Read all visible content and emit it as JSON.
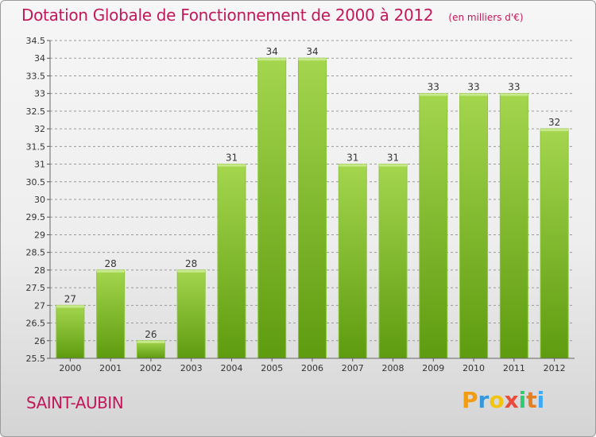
{
  "header": {
    "title": "Dotation Globale de Fonctionnement de 2000 à 2012",
    "unit": "(en milliers d'€)"
  },
  "footer": {
    "commune": "SAINT-AUBIN",
    "logo_letters": [
      "P",
      "r",
      "o",
      "x",
      "i",
      "t",
      "i"
    ]
  },
  "colors": {
    "title": "#c2185b",
    "bar_light": "#9fd24c",
    "bar_dark": "#5f9a10",
    "grid": "#9a9a9a"
  },
  "chart_data": {
    "type": "bar",
    "title": "Dotation Globale de Fonctionnement de 2000 à 2012",
    "ylabel": "(en milliers d'€)",
    "xlabel": "",
    "categories": [
      "2000",
      "2001",
      "2002",
      "2003",
      "2004",
      "2005",
      "2006",
      "2007",
      "2008",
      "2009",
      "2010",
      "2011",
      "2012"
    ],
    "values": [
      27,
      28,
      26,
      28,
      31,
      34,
      34,
      31,
      31,
      33,
      33,
      33,
      32
    ],
    "data_labels": [
      "27",
      "28",
      "26",
      "28",
      "31",
      "34",
      "34",
      "31",
      "31",
      "33",
      "33",
      "33",
      "32"
    ],
    "ylim": [
      25.5,
      34.5
    ],
    "yticks": [
      25.5,
      26,
      26.5,
      27,
      27.5,
      28,
      28.5,
      29,
      29.5,
      30,
      30.5,
      31,
      31.5,
      32,
      32.5,
      33,
      33.5,
      34,
      34.5
    ],
    "ytick_labels": [
      "25.5",
      "26",
      "26.5",
      "27",
      "27.5",
      "28",
      "28.5",
      "29",
      "29.5",
      "30",
      "30.5",
      "31",
      "31.5",
      "32",
      "32.5",
      "33",
      "33.5",
      "34",
      "34.5"
    ],
    "grid": true
  }
}
